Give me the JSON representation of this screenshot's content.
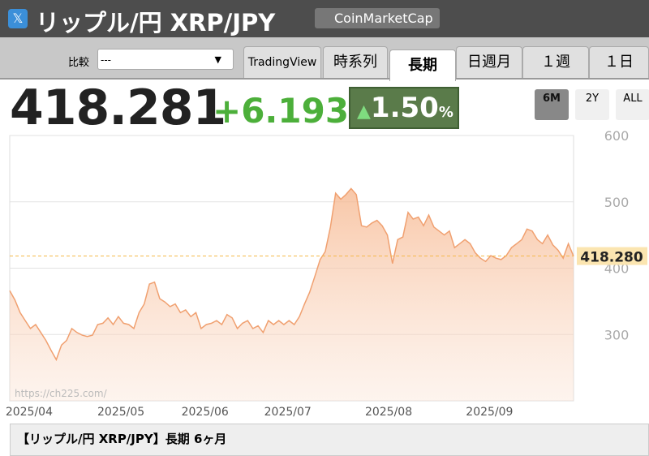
{
  "header": {
    "title": "リップル/円 XRP/JPY",
    "badge": "CoinMarketCap"
  },
  "toolbar": {
    "compare_label": "比較",
    "compare_value": "---",
    "tabs": [
      "TradingView",
      "時系列",
      "長期",
      "日週月",
      "１週",
      "１日"
    ],
    "active_tab": 2
  },
  "quote": {
    "price": "418.281",
    "change": "+6.193",
    "change_pct": "1.50",
    "pct_unit": "%"
  },
  "range_buttons": [
    "6M",
    "2Y",
    "ALL"
  ],
  "active_range": 0,
  "chart_data": {
    "type": "area",
    "color": "#f0a070",
    "values": [
      366,
      352,
      333,
      321,
      309,
      315,
      303,
      291,
      276,
      262,
      284,
      291,
      309,
      303,
      299,
      297,
      299,
      315,
      317,
      325,
      315,
      327,
      317,
      315,
      309,
      333,
      346,
      376,
      379,
      354,
      349,
      342,
      346,
      333,
      337,
      327,
      333,
      309,
      315,
      317,
      321,
      315,
      330,
      325,
      309,
      317,
      321,
      309,
      313,
      303,
      321,
      315,
      321,
      315,
      321,
      315,
      327,
      346,
      364,
      388,
      413,
      425,
      462,
      513,
      504,
      511,
      520,
      511,
      464,
      462,
      468,
      472,
      464,
      450,
      407,
      443,
      447,
      484,
      474,
      477,
      464,
      480,
      462,
      456,
      450,
      456,
      431,
      437,
      443,
      437,
      423,
      415,
      410,
      419,
      415,
      413,
      419,
      431,
      437,
      443,
      459,
      456,
      443,
      437,
      450,
      435,
      427,
      415,
      437,
      418
    ],
    "xlim": [
      0,
      109
    ],
    "xticks": [
      {
        "value": 3.75,
        "label": "2025/04"
      },
      {
        "value": 21.5,
        "label": "2025/05"
      },
      {
        "value": 37.75,
        "label": "2025/06"
      },
      {
        "value": 53.75,
        "label": "2025/07"
      },
      {
        "value": 73.25,
        "label": "2025/08"
      },
      {
        "value": 92.75,
        "label": "2025/09"
      }
    ],
    "ylim": [
      200,
      600
    ],
    "yticks": [
      300,
      400,
      500,
      600
    ],
    "grid": true,
    "last_value": {
      "value": 418.28,
      "label": "418.280"
    },
    "watermark": "https://ch225.com/"
  },
  "footer": "【リップル/円 XRP/JPY】長期 6ヶ月"
}
